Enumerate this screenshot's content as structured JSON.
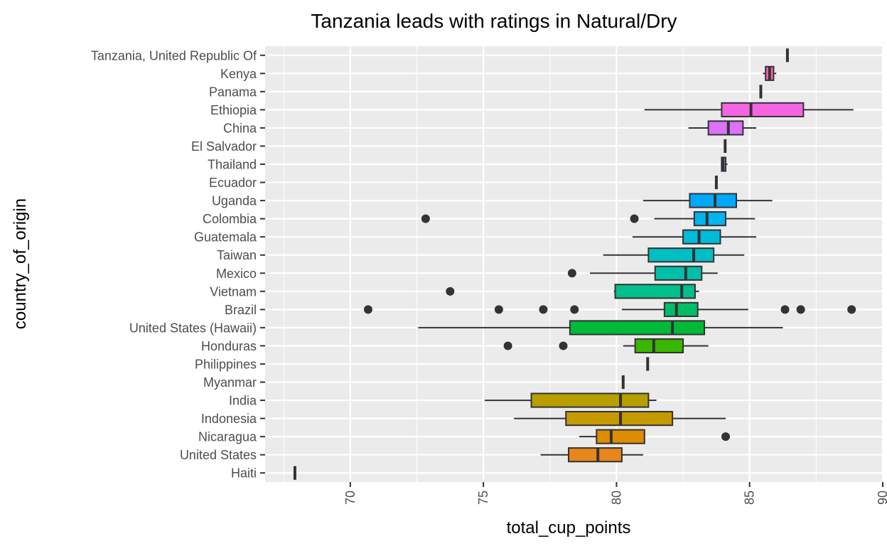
{
  "chart_data": {
    "type": "boxplot",
    "title": "Tanzania leads with ratings in Natural/Dry",
    "xlabel": "total_cup_points",
    "ylabel": "country_of_origin",
    "xlim": [
      66.8,
      90.0
    ],
    "xticks": [
      70,
      75,
      80,
      85,
      90
    ],
    "grid": true,
    "orientation": "horizontal",
    "legend": "none",
    "categories": [
      "Tanzania, United Republic Of",
      "Kenya",
      "Panama",
      "Ethiopia",
      "China",
      "El Salvador",
      "Thailand",
      "Ecuador",
      "Uganda",
      "Colombia",
      "Guatemala",
      "Taiwan",
      "Mexico",
      "Vietnam",
      "Brazil",
      "United States (Hawaii)",
      "Honduras",
      "Philippines",
      "Myanmar",
      "India",
      "Indonesia",
      "Nicaragua",
      "United States",
      "Haiti"
    ],
    "boxes": [
      {
        "name": "Tanzania, United Republic Of",
        "min": 86.42,
        "q1": 86.42,
        "median": 86.42,
        "q3": 86.42,
        "max": 86.42,
        "outliers": [],
        "color": "#FF61C9"
      },
      {
        "name": "Kenya",
        "min": 85.5,
        "q1": 85.6,
        "median": 85.75,
        "q3": 85.9,
        "max": 86.0,
        "outliers": [],
        "color": "#FF64B0"
      },
      {
        "name": "Panama",
        "min": 85.42,
        "q1": 85.42,
        "median": 85.42,
        "q3": 85.42,
        "max": 85.42,
        "outliers": [],
        "color": "#F564E3"
      },
      {
        "name": "Ethiopia",
        "min": 81.05,
        "q1": 83.95,
        "median": 85.05,
        "q3": 87.02,
        "max": 88.9,
        "outliers": [],
        "color": "#F564E3"
      },
      {
        "name": "China",
        "min": 82.7,
        "q1": 83.45,
        "median": 84.2,
        "q3": 84.75,
        "max": 85.25,
        "outliers": [],
        "color": "#DC71FA"
      },
      {
        "name": "El Salvador",
        "min": 84.08,
        "q1": 84.08,
        "median": 84.08,
        "q3": 84.08,
        "max": 84.08,
        "outliers": [],
        "color": "#B983FF"
      },
      {
        "name": "Thailand",
        "min": 83.92,
        "q1": 83.95,
        "median": 84.0,
        "q3": 84.1,
        "max": 84.17,
        "outliers": [],
        "color": "#9590FF"
      },
      {
        "name": "Ecuador",
        "min": 83.75,
        "q1": 83.75,
        "median": 83.75,
        "q3": 83.75,
        "max": 83.75,
        "outliers": [],
        "color": "#619CFF"
      },
      {
        "name": "Uganda",
        "min": 81.0,
        "q1": 82.75,
        "median": 83.7,
        "q3": 84.5,
        "max": 85.85,
        "outliers": [],
        "color": "#00A9FF"
      },
      {
        "name": "Colombia",
        "min": 81.42,
        "q1": 82.92,
        "median": 83.4,
        "q3": 84.1,
        "max": 85.2,
        "outliers": [
          72.83,
          80.67
        ],
        "color": "#00B4F0"
      },
      {
        "name": "Guatemala",
        "min": 80.6,
        "q1": 82.5,
        "median": 83.1,
        "q3": 83.9,
        "max": 85.25,
        "outliers": [],
        "color": "#00BCD8"
      },
      {
        "name": "Taiwan",
        "min": 79.5,
        "q1": 81.2,
        "median": 82.9,
        "q3": 83.65,
        "max": 84.8,
        "outliers": [],
        "color": "#00BFC4"
      },
      {
        "name": "Mexico",
        "min": 79.0,
        "q1": 81.45,
        "median": 82.6,
        "q3": 83.2,
        "max": 83.8,
        "outliers": [
          78.33
        ],
        "color": "#00BFA8"
      },
      {
        "name": "Vietnam",
        "min": 79.9,
        "q1": 79.95,
        "median": 82.45,
        "q3": 82.95,
        "max": 83.1,
        "outliers": [
          73.75
        ],
        "color": "#00C08B"
      },
      {
        "name": "Brazil",
        "min": 80.2,
        "q1": 81.8,
        "median": 82.25,
        "q3": 83.05,
        "max": 84.95,
        "outliers": [
          70.67,
          75.58,
          77.25,
          78.42,
          86.33,
          86.92,
          88.83
        ],
        "color": "#00BE67"
      },
      {
        "name": "United States (Hawaii)",
        "min": 72.55,
        "q1": 78.25,
        "median": 82.1,
        "q3": 83.3,
        "max": 86.25,
        "outliers": [],
        "color": "#00BA38"
      },
      {
        "name": "Honduras",
        "min": 80.25,
        "q1": 80.7,
        "median": 81.4,
        "q3": 82.5,
        "max": 83.45,
        "outliers": [
          75.92,
          78.0
        ],
        "color": "#39B600"
      },
      {
        "name": "Philippines",
        "min": 81.17,
        "q1": 81.17,
        "median": 81.17,
        "q3": 81.17,
        "max": 81.17,
        "outliers": [],
        "color": "#7CAE00"
      },
      {
        "name": "Myanmar",
        "min": 80.25,
        "q1": 80.25,
        "median": 80.25,
        "q3": 80.25,
        "max": 80.25,
        "outliers": [],
        "color": "#A3A500"
      },
      {
        "name": "India",
        "min": 75.05,
        "q1": 76.8,
        "median": 80.15,
        "q3": 81.2,
        "max": 81.5,
        "outliers": [],
        "color": "#B79F00"
      },
      {
        "name": "Indonesia",
        "min": 76.15,
        "q1": 78.1,
        "median": 80.15,
        "q3": 82.1,
        "max": 84.1,
        "outliers": [],
        "color": "#C59900"
      },
      {
        "name": "Nicaragua",
        "min": 78.6,
        "q1": 79.25,
        "median": 79.8,
        "q3": 81.05,
        "max": 81.05,
        "outliers": [
          84.1
        ],
        "color": "#DE8C00"
      },
      {
        "name": "United States",
        "min": 77.15,
        "q1": 78.2,
        "median": 79.3,
        "q3": 80.2,
        "max": 81.0,
        "outliers": [],
        "color": "#E7861B"
      },
      {
        "name": "Haiti",
        "min": 67.92,
        "q1": 67.92,
        "median": 67.92,
        "q3": 67.92,
        "max": 67.92,
        "outliers": [],
        "color": "#F8766D"
      }
    ]
  }
}
